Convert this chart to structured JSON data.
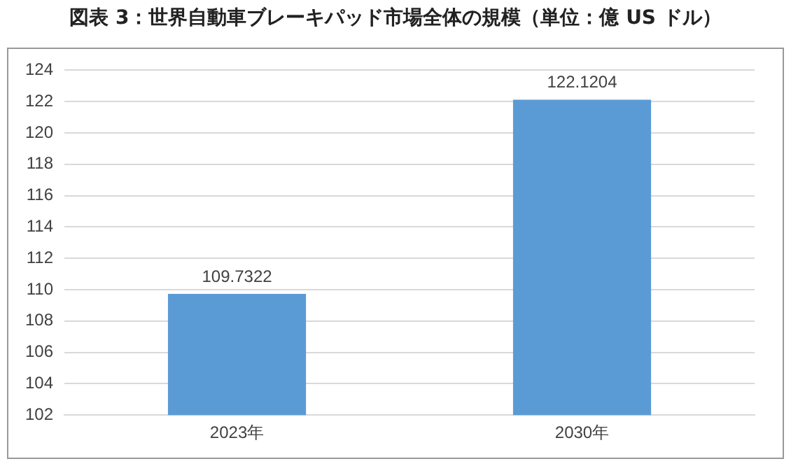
{
  "chart_data": {
    "type": "bar",
    "title": "図表 3：世界自動車ブレーキパッド市場全体の規模（単位：億 US ドル）",
    "categories": [
      "2023年",
      "2030年"
    ],
    "values": [
      109.7322,
      122.1204
    ],
    "color": "#5b9bd5",
    "ylim": [
      102,
      124
    ],
    "yticks": [
      102,
      104,
      106,
      108,
      110,
      112,
      114,
      116,
      118,
      120,
      122,
      124
    ],
    "grid": "y",
    "data_labels": true,
    "legend": false
  }
}
